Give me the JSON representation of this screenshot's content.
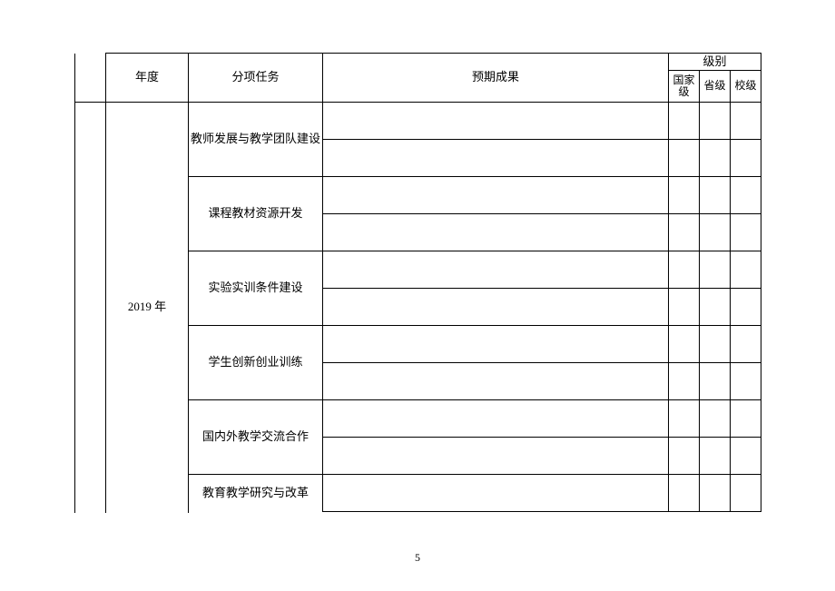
{
  "header": {
    "year": "年度",
    "task": "分项任务",
    "result": "预期成果",
    "level_group": "级别",
    "levels": [
      "国家级",
      "省级",
      "校级"
    ]
  },
  "year_label": "2019 年",
  "tasks": [
    "教师发展与教学团队建设",
    "课程教材资源开发",
    "实验实训条件建设",
    "学生创新创业训练",
    "国内外教学交流合作",
    "教育教学研究与改革"
  ],
  "page_number": "5"
}
